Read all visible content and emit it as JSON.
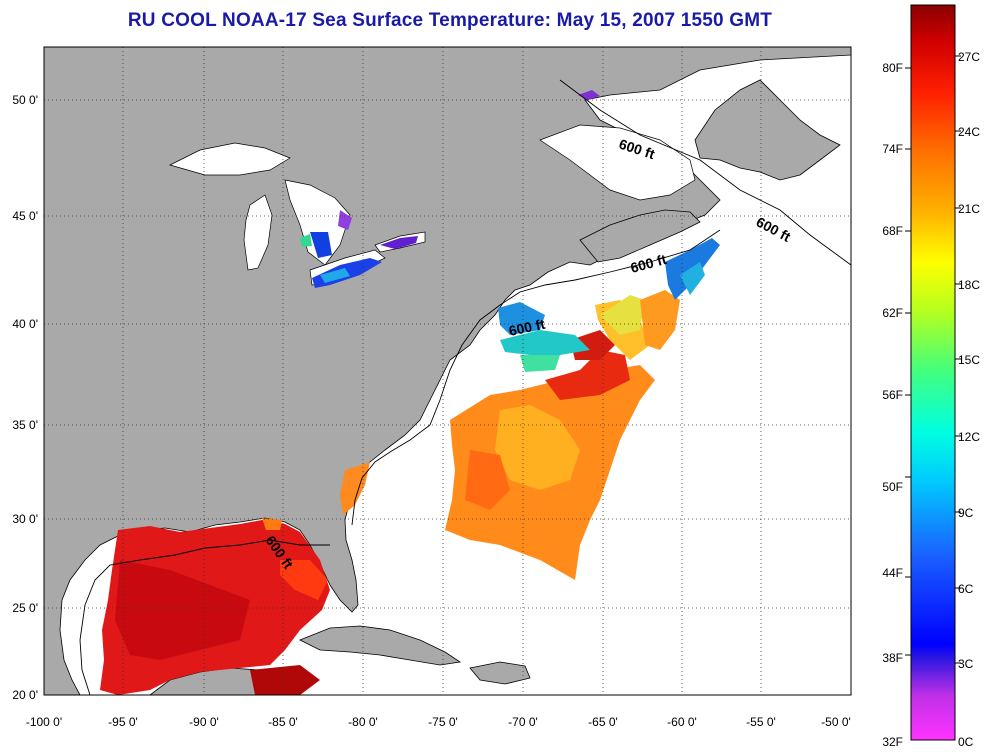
{
  "title": "RU COOL  NOAA-17  Sea Surface Temperature:  May 15, 2007 1550 GMT",
  "map": {
    "lon_labels": [
      "-100 0'",
      "-95 0'",
      "-90 0'",
      "-85 0'",
      "-80 0'",
      "-75 0'",
      "-70 0'",
      "-65 0'",
      "-60 0'",
      "-55 0'",
      "-50 0'"
    ],
    "lat_labels": [
      "50 0'",
      "45 0'",
      "40 0'",
      "35 0'",
      "30 0'",
      "25 0'",
      "20 0'"
    ],
    "contour_labels": [
      "600 ft",
      "600 ft",
      "600 ft",
      "600 ft",
      "600 ft"
    ],
    "colors": {
      "land": "#a9a9a9",
      "ocean": "#ffffff",
      "grid": "#333333"
    }
  },
  "colorbar": {
    "f_labels": [
      "80F",
      "74F",
      "68F",
      "62F",
      "56F",
      "50F",
      "44F",
      "38F",
      "32F"
    ],
    "c_labels": [
      "27C",
      "24C",
      "21C",
      "18C",
      "15C",
      "12C",
      "9C",
      "6C",
      "3C",
      "0C"
    ]
  }
}
